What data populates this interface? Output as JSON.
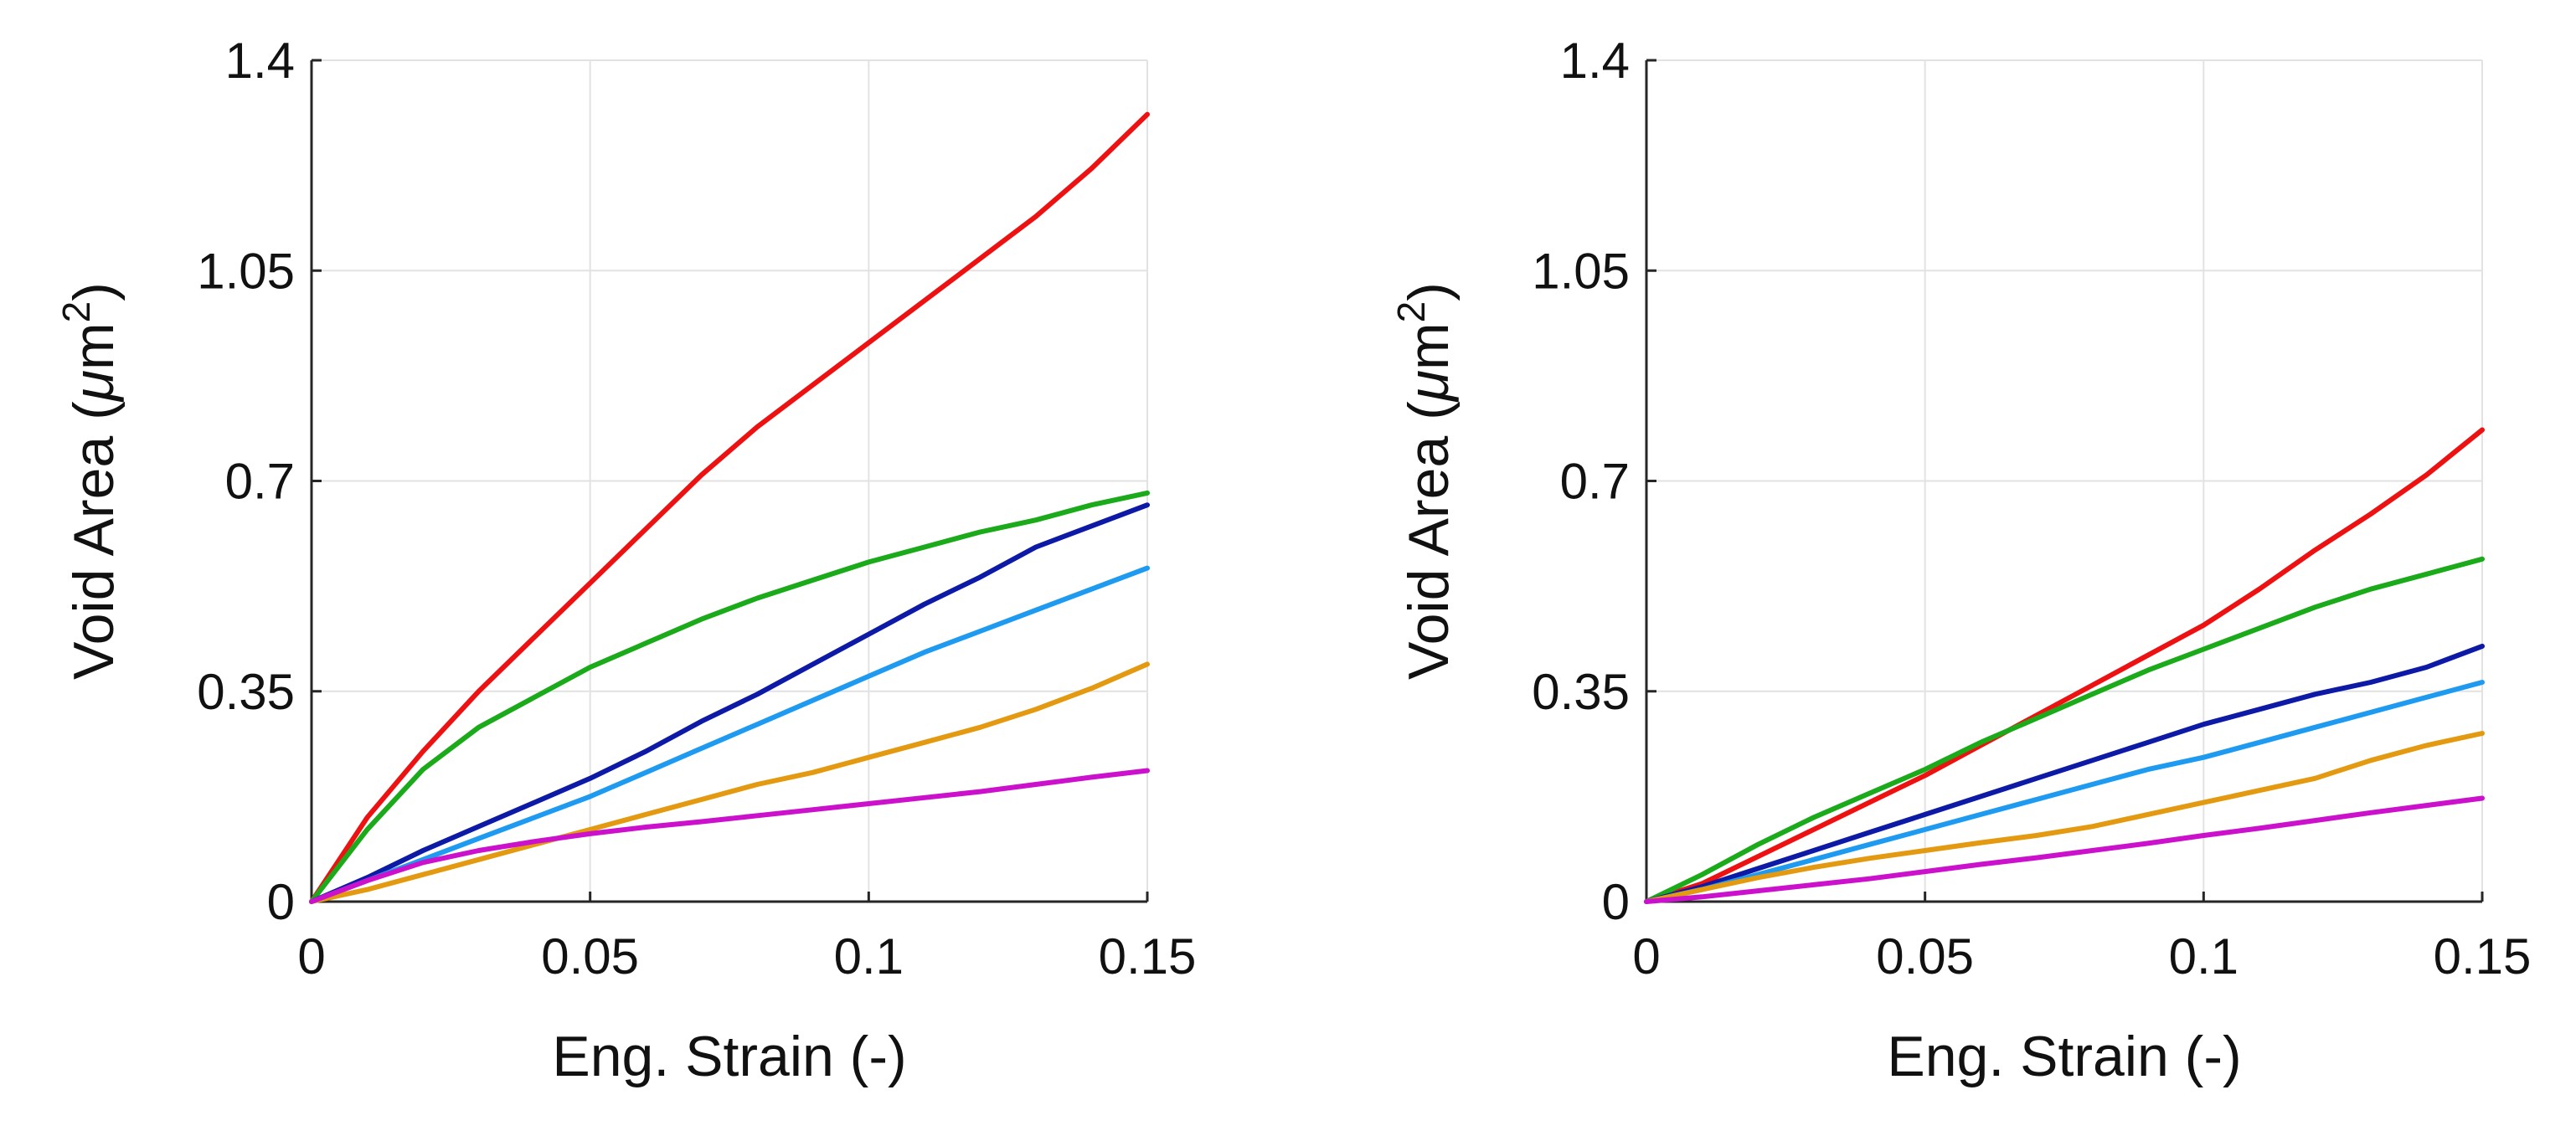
{
  "chart_data": [
    {
      "type": "line",
      "xlabel": "Eng. Strain (-)",
      "ylabel_main": "Void Area (",
      "ylabel_mu": "μ",
      "ylabel_unit": "m",
      "ylabel_sup": "2",
      "ylabel_close": ")",
      "xlim": [
        0,
        0.15
      ],
      "ylim": [
        0,
        1.4
      ],
      "xticks": [
        0,
        0.05,
        0.1,
        0.15
      ],
      "xtick_labels": [
        "0",
        "0.05",
        "0.1",
        "0.15"
      ],
      "yticks": [
        0,
        0.35,
        0.7,
        1.05,
        1.4
      ],
      "ytick_labels": [
        "0",
        "0.35",
        "0.7",
        "1.05",
        "1.4"
      ],
      "grid": true,
      "series": [
        {
          "name": "red",
          "color": "#ee1111",
          "x": [
            0,
            0.005,
            0.01,
            0.02,
            0.03,
            0.04,
            0.05,
            0.06,
            0.07,
            0.08,
            0.09,
            0.1,
            0.11,
            0.12,
            0.13,
            0.14,
            0.15
          ],
          "y": [
            0,
            0.07,
            0.14,
            0.25,
            0.35,
            0.44,
            0.53,
            0.62,
            0.71,
            0.79,
            0.86,
            0.93,
            1.0,
            1.07,
            1.14,
            1.22,
            1.31
          ]
        },
        {
          "name": "green",
          "color": "#1aaa1a",
          "x": [
            0,
            0.005,
            0.01,
            0.02,
            0.03,
            0.04,
            0.05,
            0.06,
            0.07,
            0.08,
            0.09,
            0.1,
            0.11,
            0.12,
            0.13,
            0.14,
            0.15
          ],
          "y": [
            0,
            0.06,
            0.12,
            0.22,
            0.29,
            0.34,
            0.39,
            0.43,
            0.47,
            0.505,
            0.535,
            0.565,
            0.59,
            0.615,
            0.635,
            0.66,
            0.68
          ]
        },
        {
          "name": "dark blue",
          "color": "#0d1aa6",
          "x": [
            0,
            0.01,
            0.02,
            0.03,
            0.04,
            0.05,
            0.06,
            0.07,
            0.08,
            0.09,
            0.1,
            0.11,
            0.12,
            0.13,
            0.14,
            0.15
          ],
          "y": [
            0,
            0.04,
            0.085,
            0.125,
            0.165,
            0.205,
            0.25,
            0.3,
            0.345,
            0.395,
            0.445,
            0.495,
            0.54,
            0.59,
            0.625,
            0.66
          ]
        },
        {
          "name": "light blue",
          "color": "#1e9bf0",
          "x": [
            0,
            0.01,
            0.02,
            0.03,
            0.04,
            0.05,
            0.06,
            0.07,
            0.08,
            0.09,
            0.1,
            0.11,
            0.12,
            0.13,
            0.14,
            0.15
          ],
          "y": [
            0,
            0.035,
            0.07,
            0.105,
            0.14,
            0.175,
            0.215,
            0.255,
            0.295,
            0.335,
            0.375,
            0.415,
            0.45,
            0.485,
            0.52,
            0.555
          ]
        },
        {
          "name": "orange",
          "color": "#e39a10",
          "x": [
            0,
            0.01,
            0.02,
            0.03,
            0.04,
            0.05,
            0.06,
            0.07,
            0.08,
            0.09,
            0.1,
            0.11,
            0.12,
            0.13,
            0.14,
            0.15
          ],
          "y": [
            0,
            0.02,
            0.045,
            0.07,
            0.095,
            0.12,
            0.145,
            0.17,
            0.195,
            0.215,
            0.24,
            0.265,
            0.29,
            0.32,
            0.355,
            0.395
          ]
        },
        {
          "name": "magenta",
          "color": "#cc11cc",
          "x": [
            0,
            0.01,
            0.02,
            0.03,
            0.04,
            0.05,
            0.06,
            0.07,
            0.08,
            0.09,
            0.1,
            0.11,
            0.12,
            0.13,
            0.14,
            0.15
          ],
          "y": [
            0,
            0.035,
            0.065,
            0.085,
            0.1,
            0.113,
            0.124,
            0.133,
            0.143,
            0.153,
            0.163,
            0.173,
            0.183,
            0.195,
            0.207,
            0.218
          ]
        }
      ]
    },
    {
      "type": "line",
      "xlabel": "Eng. Strain (-)",
      "ylabel_main": "Void Area (",
      "ylabel_mu": "μ",
      "ylabel_unit": "m",
      "ylabel_sup": "2",
      "ylabel_close": ")",
      "xlim": [
        0,
        0.15
      ],
      "ylim": [
        0,
        1.4
      ],
      "xticks": [
        0,
        0.05,
        0.1,
        0.15
      ],
      "xtick_labels": [
        "0",
        "0.05",
        "0.1",
        "0.15"
      ],
      "yticks": [
        0,
        0.35,
        0.7,
        1.05,
        1.4
      ],
      "ytick_labels": [
        "0",
        "0.35",
        "0.7",
        "1.05",
        "1.4"
      ],
      "grid": true,
      "series": [
        {
          "name": "red",
          "color": "#ee1111",
          "x": [
            0,
            0.01,
            0.02,
            0.03,
            0.04,
            0.05,
            0.06,
            0.07,
            0.08,
            0.09,
            0.1,
            0.11,
            0.12,
            0.13,
            0.14,
            0.15
          ],
          "y": [
            0,
            0.03,
            0.075,
            0.12,
            0.165,
            0.21,
            0.26,
            0.31,
            0.36,
            0.41,
            0.46,
            0.52,
            0.585,
            0.645,
            0.71,
            0.785
          ]
        },
        {
          "name": "green",
          "color": "#1aaa1a",
          "x": [
            0,
            0.01,
            0.02,
            0.03,
            0.04,
            0.05,
            0.06,
            0.07,
            0.08,
            0.09,
            0.1,
            0.11,
            0.12,
            0.13,
            0.14,
            0.15
          ],
          "y": [
            0,
            0.045,
            0.095,
            0.14,
            0.18,
            0.22,
            0.265,
            0.305,
            0.345,
            0.385,
            0.42,
            0.455,
            0.49,
            0.52,
            0.545,
            0.57
          ]
        },
        {
          "name": "dark blue",
          "color": "#0d1aa6",
          "x": [
            0,
            0.01,
            0.02,
            0.03,
            0.04,
            0.05,
            0.06,
            0.07,
            0.08,
            0.09,
            0.1,
            0.11,
            0.12,
            0.13,
            0.14,
            0.15
          ],
          "y": [
            0,
            0.025,
            0.055,
            0.085,
            0.115,
            0.145,
            0.175,
            0.205,
            0.235,
            0.265,
            0.295,
            0.32,
            0.345,
            0.365,
            0.39,
            0.425
          ]
        },
        {
          "name": "light blue",
          "color": "#1e9bf0",
          "x": [
            0,
            0.01,
            0.02,
            0.03,
            0.04,
            0.05,
            0.06,
            0.07,
            0.08,
            0.09,
            0.1,
            0.11,
            0.12,
            0.13,
            0.14,
            0.15
          ],
          "y": [
            0,
            0.02,
            0.045,
            0.07,
            0.095,
            0.12,
            0.145,
            0.17,
            0.195,
            0.22,
            0.24,
            0.265,
            0.29,
            0.315,
            0.34,
            0.365
          ]
        },
        {
          "name": "orange",
          "color": "#e39a10",
          "x": [
            0,
            0.01,
            0.02,
            0.03,
            0.04,
            0.05,
            0.06,
            0.07,
            0.08,
            0.09,
            0.1,
            0.11,
            0.12,
            0.13,
            0.14,
            0.15
          ],
          "y": [
            0,
            0.02,
            0.04,
            0.057,
            0.072,
            0.085,
            0.098,
            0.11,
            0.125,
            0.145,
            0.165,
            0.185,
            0.205,
            0.235,
            0.26,
            0.28
          ]
        },
        {
          "name": "magenta",
          "color": "#cc11cc",
          "x": [
            0,
            0.01,
            0.02,
            0.03,
            0.04,
            0.05,
            0.06,
            0.07,
            0.08,
            0.09,
            0.1,
            0.11,
            0.12,
            0.13,
            0.14,
            0.15
          ],
          "y": [
            0,
            0.008,
            0.018,
            0.028,
            0.038,
            0.05,
            0.062,
            0.073,
            0.085,
            0.097,
            0.11,
            0.122,
            0.135,
            0.148,
            0.16,
            0.172
          ]
        }
      ]
    }
  ]
}
